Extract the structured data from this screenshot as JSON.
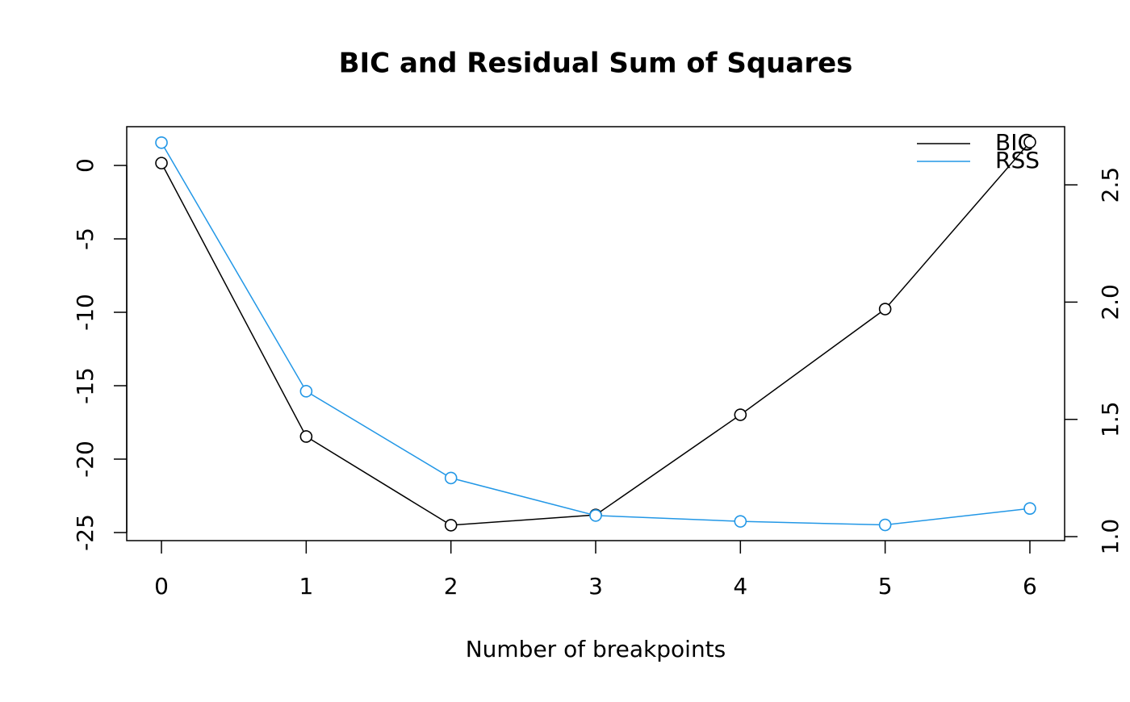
{
  "chart_data": {
    "type": "line",
    "title": "BIC and Residual Sum of Squares",
    "xlabel": "Number of breakpoints",
    "x": [
      0,
      1,
      2,
      3,
      4,
      5,
      6
    ],
    "xlim": [
      -0.24,
      6.24
    ],
    "xticks": [
      0,
      1,
      2,
      3,
      4,
      5,
      6
    ],
    "ylim": [
      -25.55,
      2.64
    ],
    "yticks": [
      0,
      -5,
      -10,
      -15,
      -20,
      -25
    ],
    "y2lim": [
      0.983,
      2.748
    ],
    "y2ticks": [
      {
        "value": 1,
        "label": "1.0"
      },
      {
        "value": 1.5,
        "label": "1.5"
      },
      {
        "value": 2,
        "label": "2.0"
      },
      {
        "value": 2.5,
        "label": "2.5"
      }
    ],
    "legend": "top-right",
    "series": [
      {
        "name": "BIC",
        "color": "#000000",
        "values": [
          0.16,
          -18.46,
          -24.5,
          -23.8,
          -16.98,
          -9.78,
          1.59
        ]
      },
      {
        "name": "RSS",
        "color": "#2297e6",
        "axis": "y2",
        "values": [
          2.68,
          1.62,
          1.25,
          1.09,
          1.065,
          1.05,
          1.12
        ]
      }
    ]
  }
}
